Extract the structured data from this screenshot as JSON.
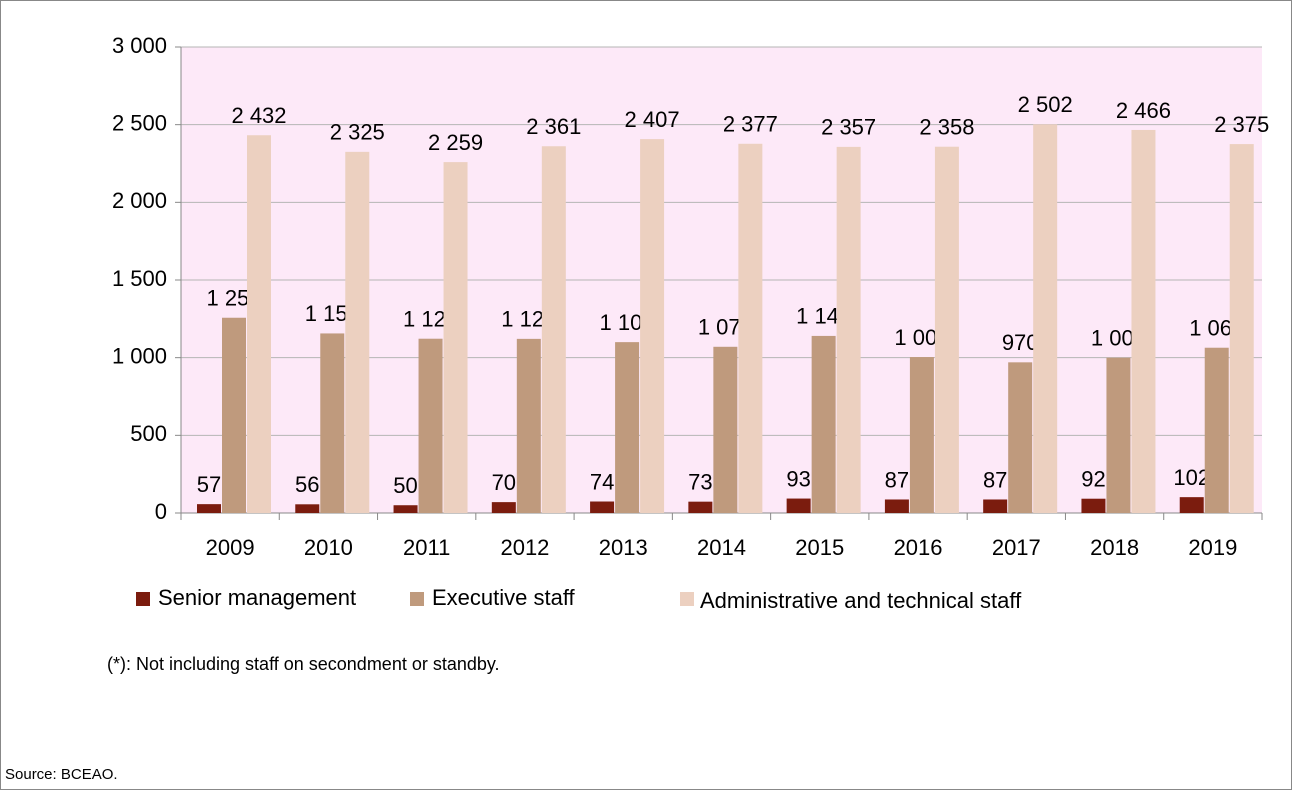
{
  "chart_data": {
    "type": "bar",
    "categories": [
      "2009",
      "2010",
      "2011",
      "2012",
      "2013",
      "2014",
      "2015",
      "2016",
      "2017",
      "2018",
      "2019"
    ],
    "series": [
      {
        "name": "Senior management",
        "color": "#7b1c0e",
        "values": [
          57,
          56,
          50,
          70,
          74,
          73,
          93,
          87,
          87,
          92,
          102
        ],
        "value_labels": [
          "57",
          "56",
          "50",
          "70",
          "74",
          "73",
          "93",
          "87",
          "87",
          "92",
          "102"
        ]
      },
      {
        "name": "Executive staff",
        "color": "#bf9a7d",
        "values": [
          1257,
          1156,
          1122,
          1121,
          1100,
          1070,
          1140,
          1004,
          970,
          1000,
          1064
        ],
        "value_labels": [
          "1 257",
          "1 156",
          "1 122",
          "1 121",
          "1 100",
          "1 070",
          "1 140",
          "1 004",
          "970",
          "1 000",
          "1 064"
        ]
      },
      {
        "name": "Administrative and technical staff",
        "color": "#ecd0c0",
        "values": [
          2432,
          2325,
          2259,
          2361,
          2407,
          2377,
          2357,
          2358,
          2502,
          2466,
          2375
        ],
        "value_labels": [
          "2 432",
          "2 325",
          "2 259",
          "2 361",
          "2 407",
          "2 377",
          "2 357",
          "2 358",
          "2 502",
          "2 466",
          "2 375"
        ]
      }
    ],
    "ylim": [
      0,
      3000
    ],
    "yticks": [
      0,
      500,
      {
        "value": 1000,
        "label": "1 000"
      },
      {
        "value": 1500,
        "label": "1 500"
      },
      {
        "value": 2000,
        "label": "2 000"
      },
      {
        "value": 2500,
        "label": "2 500"
      },
      {
        "value": 3000,
        "label": "3 000"
      }
    ],
    "grid": true,
    "plot_background": "#fde9f8",
    "footnote": "(*): Not including staff on secondment or standby.",
    "source": "Source: BCEAO."
  }
}
